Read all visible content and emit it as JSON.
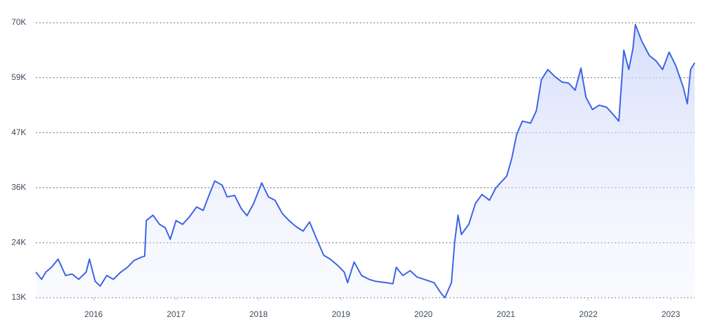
{
  "chart_data": {
    "type": "line",
    "x": [
      2015.3,
      2015.37,
      2015.42,
      2015.49,
      2015.57,
      2015.66,
      2015.74,
      2015.82,
      2015.91,
      2015.95,
      2016.02,
      2016.08,
      2016.16,
      2016.24,
      2016.33,
      2016.41,
      2016.49,
      2016.58,
      2016.62,
      2016.64,
      2016.72,
      2016.8,
      2016.87,
      2016.93,
      2017.0,
      2017.08,
      2017.16,
      2017.25,
      2017.33,
      2017.41,
      2017.47,
      2017.56,
      2017.62,
      2017.71,
      2017.79,
      2017.86,
      2017.94,
      2018.04,
      2018.12,
      2018.2,
      2018.29,
      2018.37,
      2018.45,
      2018.54,
      2018.62,
      2018.7,
      2018.79,
      2018.87,
      2018.96,
      2019.04,
      2019.08,
      2019.16,
      2019.25,
      2019.34,
      2019.42,
      2019.55,
      2019.63,
      2019.67,
      2019.75,
      2019.84,
      2019.92,
      2020.01,
      2020.13,
      2020.21,
      2020.26,
      2020.34,
      2020.38,
      2020.42,
      2020.46,
      2020.55,
      2020.63,
      2020.71,
      2020.8,
      2020.88,
      2021.01,
      2021.07,
      2021.13,
      2021.2,
      2021.3,
      2021.37,
      2021.43,
      2021.51,
      2021.59,
      2021.68,
      2021.76,
      2021.84,
      2021.91,
      2021.97,
      2022.05,
      2022.13,
      2022.22,
      2022.3,
      2022.37,
      2022.43,
      2022.49,
      2022.54,
      2022.57,
      2022.65,
      2022.74,
      2022.82,
      2022.9,
      2022.98,
      2023.06,
      2023.15,
      2023.2,
      2023.24,
      2023.29
    ],
    "series": [
      {
        "color": "#3b63e6",
        "values": [
          18300,
          16800,
          18300,
          19300,
          21000,
          17600,
          17900,
          16800,
          18300,
          21000,
          16400,
          15400,
          17600,
          16800,
          18300,
          19300,
          20700,
          21400,
          21600,
          29000,
          30100,
          28200,
          27500,
          25100,
          29000,
          28200,
          29700,
          31800,
          31100,
          34700,
          37200,
          36300,
          33900,
          34200,
          31500,
          30000,
          32500,
          36800,
          33900,
          33200,
          30400,
          29000,
          27800,
          26800,
          28700,
          25400,
          21800,
          21000,
          19700,
          18300,
          16100,
          20400,
          17600,
          16800,
          16400,
          16100,
          15900,
          19300,
          17600,
          18600,
          17300,
          16800,
          16100,
          14000,
          13000,
          16100,
          24700,
          30100,
          26100,
          28200,
          32500,
          34400,
          33200,
          35800,
          38200,
          41800,
          46800,
          49600,
          49200,
          51800,
          58200,
          60300,
          58900,
          57700,
          57500,
          56000,
          60600,
          54600,
          52000,
          52900,
          52500,
          51000,
          49600,
          64300,
          60300,
          64600,
          69600,
          66100,
          63200,
          62100,
          60300,
          63900,
          61100,
          56700,
          53200,
          60300,
          61700
        ]
      }
    ],
    "xlim": [
      2015.3,
      2023.29
    ],
    "xticks": [
      2016,
      2017,
      2018,
      2019,
      2020,
      2021,
      2022,
      2023
    ],
    "ylim": [
      13000,
      70000
    ],
    "yticks": [
      {
        "value": 13000,
        "label": "13K"
      },
      {
        "value": 24400,
        "label": "24K"
      },
      {
        "value": 35800,
        "label": "36K"
      },
      {
        "value": 47200,
        "label": "47K"
      },
      {
        "value": 58600,
        "label": "59K"
      },
      {
        "value": 70000,
        "label": "70K"
      }
    ],
    "grid": true
  }
}
